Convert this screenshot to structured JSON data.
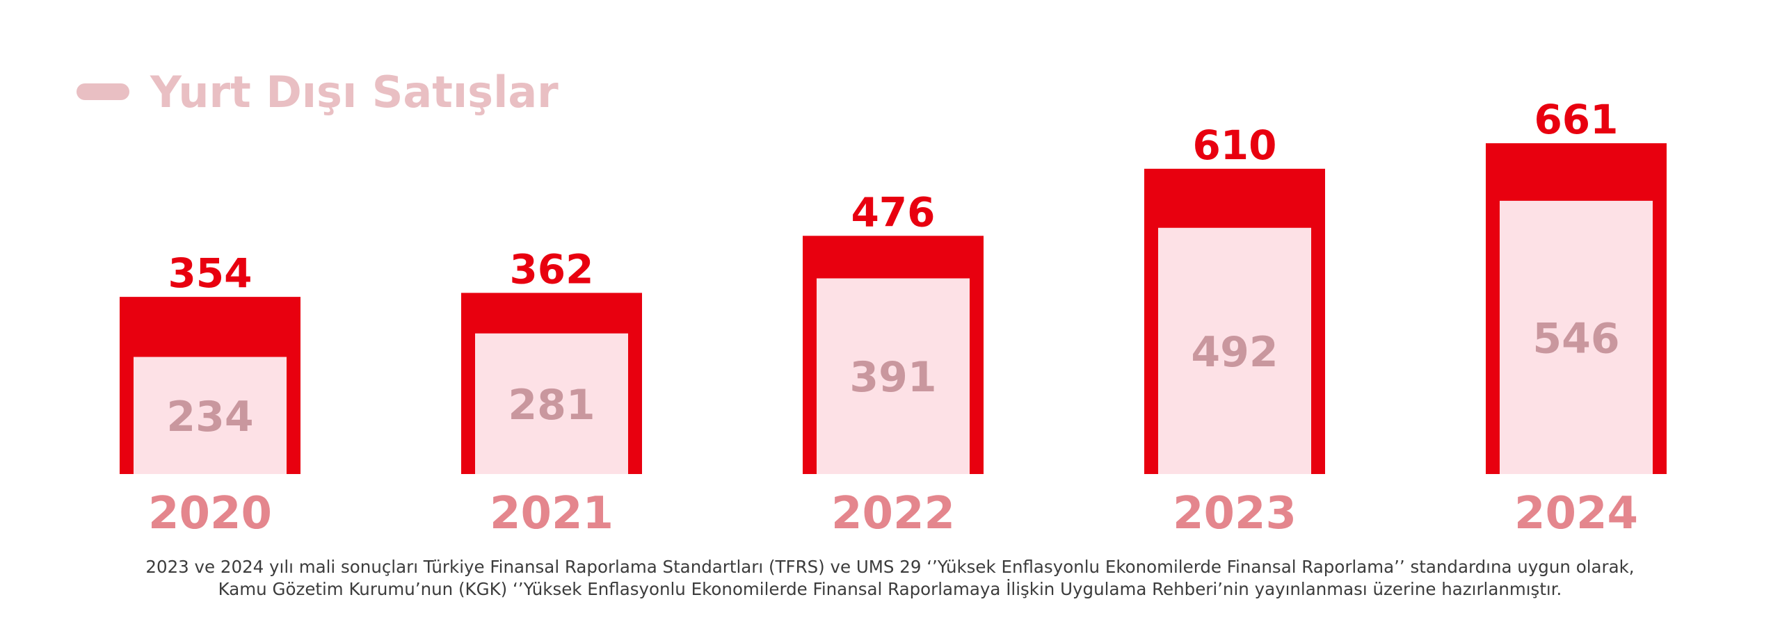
{
  "colors": {
    "outer_bar": "#e8000f",
    "inner_bar": "#fde1e6",
    "outer_label": "#e8000f",
    "inner_label": "#c9979e",
    "year_label": "#e4868d",
    "legend": "#e9bfc3"
  },
  "chart_data": {
    "type": "bar",
    "categories": [
      "2020",
      "2021",
      "2022",
      "2023",
      "2024"
    ],
    "series": [
      {
        "name": "",
        "values": [
          354,
          362,
          476,
          610,
          661
        ]
      },
      {
        "name": "Yurt Dışı Satışlar",
        "values": [
          234,
          281,
          391,
          492,
          546
        ]
      }
    ],
    "legend": {
      "label": "Yurt Dışı Satışlar",
      "placement": "top-left"
    },
    "title": "",
    "xlabel": "",
    "ylabel": "",
    "ylim": [
      0,
      661
    ],
    "grid": false
  },
  "footnote": {
    "line1": "2023 ve 2024 yılı mali sonuçları Türkiye Finansal Raporlama Standartları (TFRS) ve UMS 29 ‘’Yüksek Enflasyonlu Ekonomilerde Finansal Raporlama’’ standardına uygun olarak,",
    "line2": "Kamu Gözetim Kurumu’nun (KGK) ‘’Yüksek Enflasyonlu Ekonomilerde Finansal Raporlamaya İlişkin Uygulama Rehberi’nin yayınlanması üzerine hazırlanmıştır."
  }
}
